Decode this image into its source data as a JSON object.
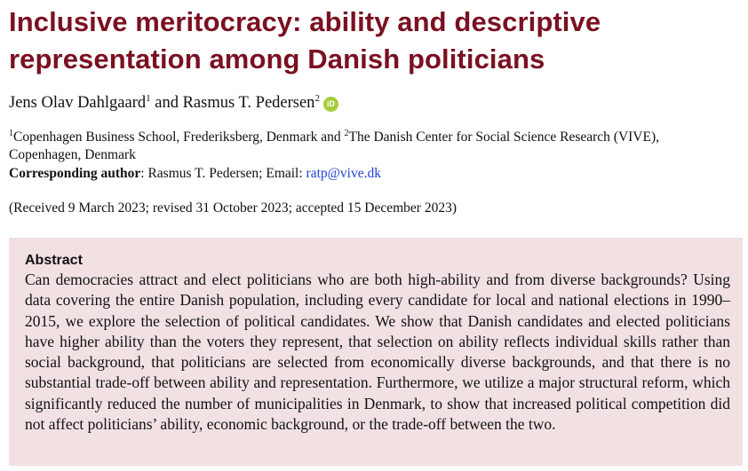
{
  "title": "Inclusive meritocracy: ability and descriptive representation among Danish politicians",
  "authors": {
    "author1": "Jens Olav Dahlgaard",
    "author1_sup": "1",
    "connector": " and ",
    "author2": "Rasmus T. Pedersen",
    "author2_sup": "2",
    "orcid_badge": "iD"
  },
  "affiliations": {
    "sup1": "1",
    "affil1": "Copenhagen Business School, Frederiksberg, Denmark and ",
    "sup2": "2",
    "affil2": "The Danish Center for Social Science Research (VIVE), Copenhagen, Denmark"
  },
  "corresponding": {
    "label": "Corresponding author",
    "text": ": Rasmus T. Pedersen; Email: ",
    "email": "ratp@vive.dk"
  },
  "received": "(Received 9 March 2023; revised 31 October 2023; accepted 15 December 2023)",
  "abstract": {
    "heading": "Abstract",
    "body": "Can democracies attract and elect politicians who are both high-ability and from diverse backgrounds? Using data covering the entire Danish population, including every candidate for local and national elections in 1990–2015, we explore the selection of political candidates. We show that Danish candidates and elected politicians have higher ability than the voters they represent, that selection on ability reflects individual skills rather than social background, that politicians are selected from economically diverse backgrounds, and that there is no substantial trade-off between ability and representation. Furthermore, we utilize a major structural reform, which significantly reduced the number of municipalities in Denmark, to show that increased political competition did not affect politicians’ ability, economic background, or the trade-off between the two."
  },
  "colors": {
    "title": "#7a1020",
    "abstract_background": "#f1e1e3",
    "email_link": "#1f3fd8",
    "orcid": "#a6ce39"
  }
}
